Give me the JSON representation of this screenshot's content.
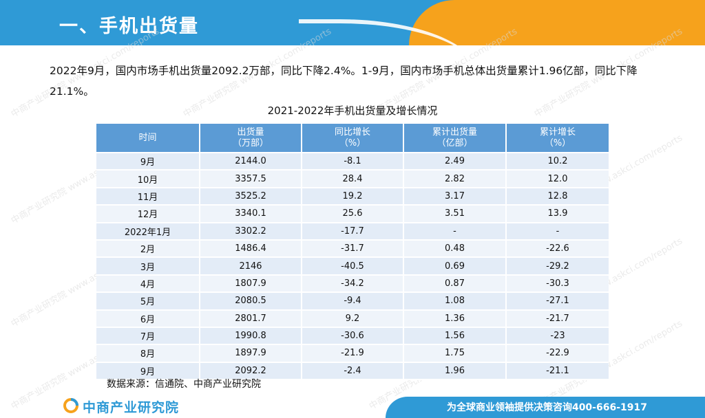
{
  "header": {
    "title": "一、手机出货量"
  },
  "intro": {
    "text": "2022年9月，国内市场手机出货量2092.2万部，同比下降2.4%。1-9月，国内市场手机总体出货量累计1.96亿部，同比下降21.1%。"
  },
  "table": {
    "title": "2021-2022年手机出货量及增长情况",
    "headers": [
      {
        "line1": "时间",
        "line2": ""
      },
      {
        "line1": "出货量",
        "line2": "（万部）"
      },
      {
        "line1": "同比增长",
        "line2": "（%）"
      },
      {
        "line1": "累计出货量",
        "line2": "（亿部）"
      },
      {
        "line1": "累计增长",
        "line2": "（%）"
      }
    ],
    "rows": [
      [
        "9月",
        "2144.0",
        "-8.1",
        "2.49",
        "10.2"
      ],
      [
        "10月",
        "3357.5",
        "28.4",
        "2.82",
        "12.0"
      ],
      [
        "11月",
        "3525.2",
        "19.2",
        "3.17",
        "12.8"
      ],
      [
        "12月",
        "3340.1",
        "25.6",
        "3.51",
        "13.9"
      ],
      [
        "2022年1月",
        "3302.2",
        "-17.7",
        "-",
        "-"
      ],
      [
        "2月",
        "1486.4",
        "-31.7",
        "0.48",
        "-22.6"
      ],
      [
        "3月",
        "2146",
        "-40.5",
        "0.69",
        "-29.2"
      ],
      [
        "4月",
        "1807.9",
        "-34.2",
        "0.87",
        "-30.3"
      ],
      [
        "5月",
        "2080.5",
        "-9.4",
        "1.08",
        "-27.1"
      ],
      [
        "6月",
        "2801.7",
        "9.2",
        "1.36",
        "-21.7"
      ],
      [
        "7月",
        "1990.8",
        "-30.6",
        "1.56",
        "-23"
      ],
      [
        "8月",
        "1897.9",
        "-21.9",
        "1.75",
        "-22.9"
      ],
      [
        "9月",
        "2092.2",
        "-2.4",
        "1.96",
        "-21.1"
      ]
    ],
    "source": "数据来源：信通院、中商产业研究院"
  },
  "footer": {
    "logo_text": "中商产业研究院",
    "slogan": "为全球商业领袖提供决策咨询400-666-1917"
  },
  "watermark": {
    "text": "中商产业研究院 www.askci.com/reports"
  },
  "colors": {
    "header_blue": "#2f9ad6",
    "header_orange": "#f6a21c",
    "table_header": "#5b9bd5",
    "row_odd": "#e3ecf7",
    "row_even": "#eff4fa"
  }
}
